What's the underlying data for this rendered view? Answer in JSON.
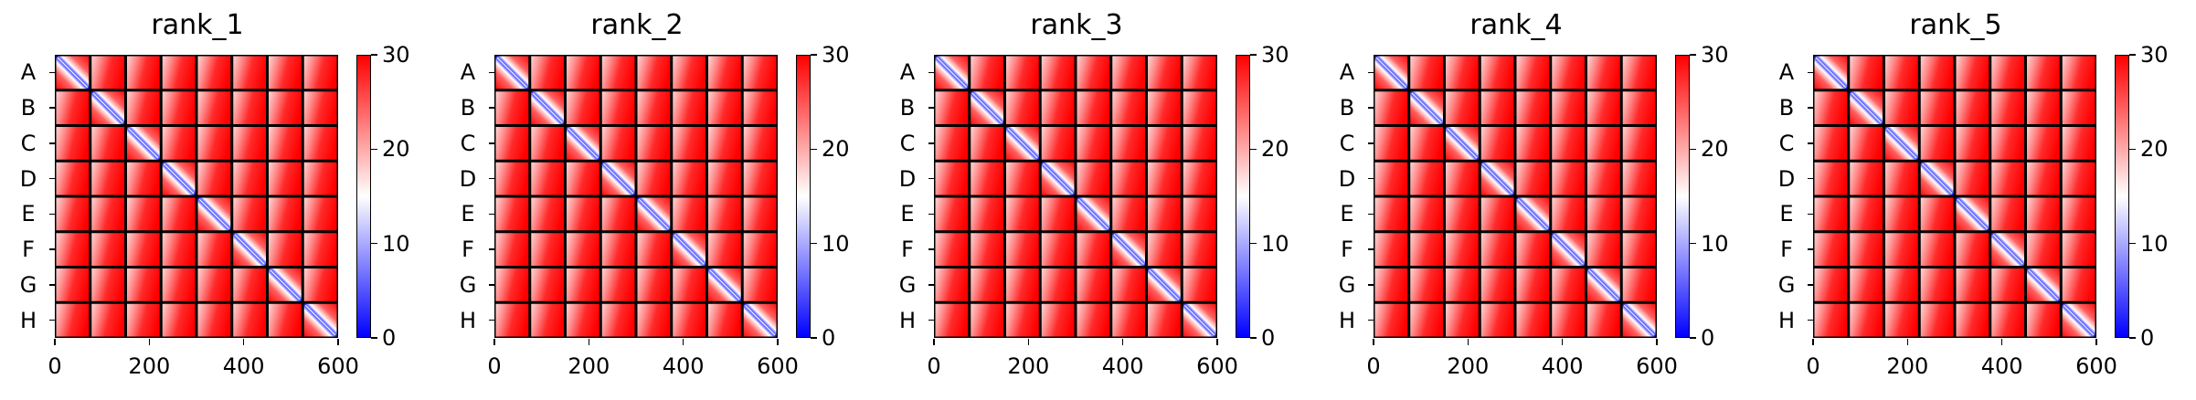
{
  "chart_data": [
    {
      "type": "heatmap",
      "title": "rank_1",
      "y_tick_labels": [
        "A",
        "B",
        "C",
        "D",
        "E",
        "F",
        "G",
        "H"
      ],
      "x_ticks": [
        0,
        200,
        400,
        600
      ],
      "xlim": [
        0,
        600
      ],
      "blocks": 8,
      "block_size": 75,
      "colorbar": {
        "ticks": [
          0,
          10,
          20,
          30
        ],
        "range": [
          0,
          30
        ],
        "colormap": "bwr"
      }
    },
    {
      "type": "heatmap",
      "title": "rank_2",
      "y_tick_labels": [
        "A",
        "B",
        "C",
        "D",
        "E",
        "F",
        "G",
        "H"
      ],
      "x_ticks": [
        0,
        200,
        400,
        600
      ],
      "xlim": [
        0,
        600
      ],
      "blocks": 8,
      "block_size": 75,
      "colorbar": {
        "ticks": [
          0,
          10,
          20,
          30
        ],
        "range": [
          0,
          30
        ],
        "colormap": "bwr"
      }
    },
    {
      "type": "heatmap",
      "title": "rank_3",
      "y_tick_labels": [
        "A",
        "B",
        "C",
        "D",
        "E",
        "F",
        "G",
        "H"
      ],
      "x_ticks": [
        0,
        200,
        400,
        600
      ],
      "xlim": [
        0,
        600
      ],
      "blocks": 8,
      "block_size": 75,
      "colorbar": {
        "ticks": [
          0,
          10,
          20,
          30
        ],
        "range": [
          0,
          30
        ],
        "colormap": "bwr"
      }
    },
    {
      "type": "heatmap",
      "title": "rank_4",
      "y_tick_labels": [
        "A",
        "B",
        "C",
        "D",
        "E",
        "F",
        "G",
        "H"
      ],
      "x_ticks": [
        0,
        200,
        400,
        600
      ],
      "xlim": [
        0,
        600
      ],
      "blocks": 8,
      "block_size": 75,
      "colorbar": {
        "ticks": [
          0,
          10,
          20,
          30
        ],
        "range": [
          0,
          30
        ],
        "colormap": "bwr"
      }
    },
    {
      "type": "heatmap",
      "title": "rank_5",
      "y_tick_labels": [
        "A",
        "B",
        "C",
        "D",
        "E",
        "F",
        "G",
        "H"
      ],
      "x_ticks": [
        0,
        200,
        400,
        600
      ],
      "xlim": [
        0,
        600
      ],
      "blocks": 8,
      "block_size": 75,
      "colorbar": {
        "ticks": [
          0,
          10,
          20,
          30
        ],
        "range": [
          0,
          30
        ],
        "colormap": "bwr"
      }
    }
  ],
  "colors": {
    "low": "#0000ff",
    "mid": "#ffffff",
    "high": "#ff0000",
    "grid_lines": "#000000"
  }
}
